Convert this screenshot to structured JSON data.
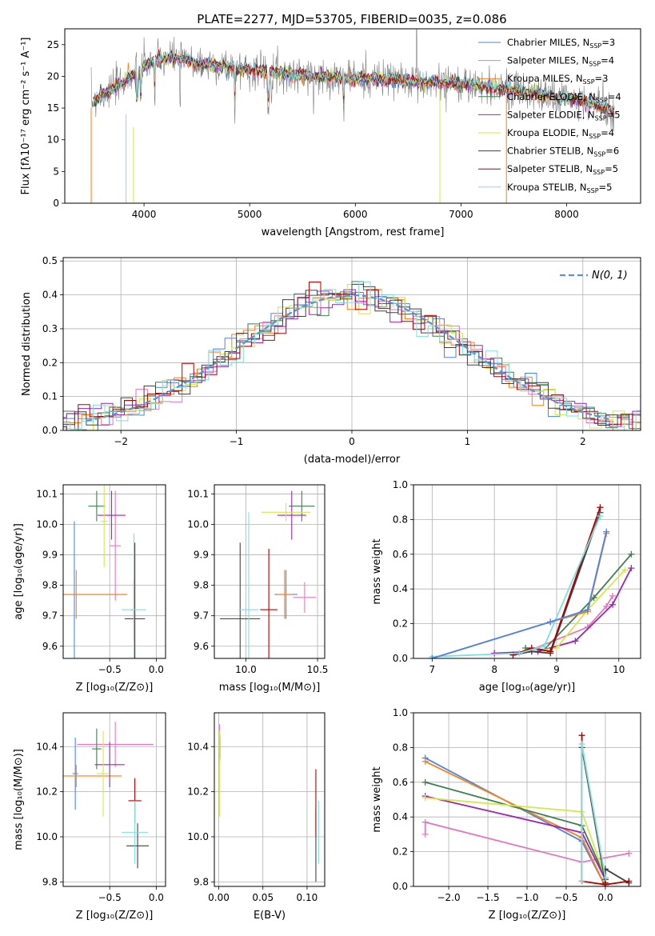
{
  "figure": {
    "title": "PLATE=2277, MJD=53705, FIBERID=0035, z=0.086"
  },
  "colors": {
    "chabrier_miles": "#4a86e8",
    "salpeter_miles": "#e377c2",
    "kroupa_miles": "#ff7f0e",
    "chabrier_elodie": "#3f7f4f",
    "salpeter_elodie": "#9c27b0",
    "kroupa_elodie": "#d4e84a",
    "chabrier_stelib": "#404040",
    "salpeter_stelib": "#b20000",
    "kroupa_stelib": "#7fdfe0",
    "data": "#7f7f7f",
    "normal": "#5b8fd9"
  },
  "chart_data": [
    {
      "id": "spectrum",
      "type": "line",
      "xlabel": "wavelength [Angstrom, rest frame]",
      "ylabel": "Flux [fλ10⁻¹⁷ erg cm⁻² s⁻¹ A⁻¹]",
      "xlim": [
        3250,
        8700
      ],
      "ylim": [
        0,
        27.5
      ],
      "xticks": [
        "4000",
        "5000",
        "6000",
        "7000",
        "8000"
      ],
      "yticks": [
        "0",
        "5",
        "10",
        "15",
        "20",
        "25"
      ],
      "grid": false,
      "legend": "top-right",
      "legend_entries": [
        {
          "base": "Chabrier MILES, N",
          "sub": "SSP",
          "tail": "=3"
        },
        {
          "base": "Salpeter MILES, N",
          "sub": "SSP",
          "tail": "=4"
        },
        {
          "base": "Kroupa MILES, N",
          "sub": "SSP",
          "tail": "=3"
        },
        {
          "base": "Chabrier ELODIE, N",
          "sub": "SSP",
          "tail": "=4"
        },
        {
          "base": "Salpeter ELODIE, N",
          "sub": "SSP",
          "tail": "=5"
        },
        {
          "base": "Kroupa ELODIE, N",
          "sub": "SSP",
          "tail": "=4"
        },
        {
          "base": "Chabrier STELIB, N",
          "sub": "SSP",
          "tail": "=6"
        },
        {
          "base": "Salpeter STELIB, N",
          "sub": "SSP",
          "tail": "=5"
        },
        {
          "base": "Kroupa STELIB, N",
          "sub": "SSP",
          "tail": "=5"
        }
      ],
      "continuum": {
        "x": [
          3500,
          3600,
          3800,
          3950,
          4100,
          4300,
          4500,
          4800,
          5000,
          5300,
          5600,
          6000,
          6300,
          6600,
          7000,
          7400,
          7800,
          8200,
          8450
        ],
        "y": [
          16,
          17,
          19,
          21,
          22.5,
          23,
          22,
          21.5,
          21,
          20.5,
          20,
          19.8,
          19.5,
          19.2,
          18.8,
          18,
          17,
          16,
          14.5
        ]
      }
    },
    {
      "id": "residuals",
      "type": "histogram",
      "xlabel": "(data-model)/error",
      "ylabel": "Normed distribution",
      "xlim": [
        -2.5,
        2.5
      ],
      "ylim": [
        0,
        0.51
      ],
      "xticks": [
        "−2",
        "−1",
        "0",
        "1",
        "2"
      ],
      "yticks": [
        "0.0",
        "0.1",
        "0.2",
        "0.3",
        "0.4",
        "0.5"
      ],
      "grid": true,
      "legend": "top-right",
      "legend_label": "N(0, 1)",
      "bin_width": 0.1
    },
    {
      "id": "age_vs_Z",
      "type": "scatter",
      "xlabel": "Z [log₁₀(Z/Z⊙)]",
      "ylabel": "age  [log₁₀(age/yr)]",
      "xlim": [
        -1.0,
        0.1
      ],
      "ylim": [
        9.56,
        10.13
      ],
      "xticks": [
        "−0.5",
        "0.0"
      ],
      "yticks": [
        "9.6",
        "9.7",
        "9.8",
        "9.9",
        "10.0",
        "10.1"
      ],
      "grid": true,
      "points": [
        {
          "s": "chabrier_miles",
          "x": -0.88,
          "y": 9.77,
          "xerr": 0.56,
          "yerr": 0.24
        },
        {
          "s": "salpeter_miles",
          "x": -0.44,
          "y": 9.93,
          "xerr": 0.06,
          "yerr": 0.18
        },
        {
          "s": "kroupa_miles",
          "x": -0.86,
          "y": 9.77,
          "xerr": 0.55,
          "yerr": 0.08
        },
        {
          "s": "chabrier_elodie",
          "x": -0.64,
          "y": 10.06,
          "xerr": 0.09,
          "yerr": 0.05
        },
        {
          "s": "salpeter_elodie",
          "x": -0.48,
          "y": 10.03,
          "xerr": 0.15,
          "yerr": 0.08
        },
        {
          "s": "kroupa_elodie",
          "x": -0.56,
          "y": 10.01,
          "xerr": 0.04,
          "yerr": 0.15
        },
        {
          "s": "chabrier_stelib",
          "x": -0.23,
          "y": 9.69,
          "xerr": 0.11,
          "yerr": 0.25
        },
        {
          "s": "salpeter_stelib",
          "x": -0.24,
          "y": 9.72,
          "xerr": 0.03,
          "yerr": 0.1
        },
        {
          "s": "kroupa_stelib",
          "x": -0.24,
          "y": 9.72,
          "xerr": 0.13,
          "yerr": 0.25
        }
      ]
    },
    {
      "id": "age_vs_mass",
      "type": "scatter",
      "xlabel": "mass [log₁₀(M/M⊙)]",
      "ylabel": "",
      "xlim": [
        9.78,
        10.55
      ],
      "ylim": [
        9.56,
        10.13
      ],
      "xticks": [
        "10.0",
        "10.5"
      ],
      "yticks": [
        "9.6",
        "9.7",
        "9.8",
        "9.9",
        "10.0",
        "10.1"
      ],
      "grid": true,
      "points": [
        {
          "s": "chabrier_miles",
          "x": 10.28,
          "y": 9.77,
          "xerr": 0.08,
          "yerr": 0.08
        },
        {
          "s": "salpeter_miles",
          "x": 10.41,
          "y": 9.76,
          "xerr": 0.08,
          "yerr": 0.05
        },
        {
          "s": "kroupa_miles",
          "x": 10.27,
          "y": 9.77,
          "xerr": 0.05,
          "yerr": 0.08
        },
        {
          "s": "chabrier_elodie",
          "x": 10.39,
          "y": 10.06,
          "xerr": 0.09,
          "yerr": 0.05
        },
        {
          "s": "salpeter_elodie",
          "x": 10.32,
          "y": 10.03,
          "xerr": 0.1,
          "yerr": 0.08
        },
        {
          "s": "kroupa_elodie",
          "x": 10.28,
          "y": 10.04,
          "xerr": 0.17,
          "yerr": 0.03
        },
        {
          "s": "chabrier_stelib",
          "x": 9.96,
          "y": 9.69,
          "xerr": 0.14,
          "yerr": 0.25
        },
        {
          "s": "salpeter_stelib",
          "x": 10.16,
          "y": 9.72,
          "xerr": 0.06,
          "yerr": 0.2
        },
        {
          "s": "kroupa_stelib",
          "x": 10.02,
          "y": 9.72,
          "xerr": 0.07,
          "yerr": 0.32
        }
      ]
    },
    {
      "id": "mass_vs_Z",
      "type": "scatter",
      "xlabel": "Z [log₁₀(Z/Z⊙)]",
      "ylabel": "mass [log₁₀(M/M⊙)]",
      "xlim": [
        -1.0,
        0.1
      ],
      "ylim": [
        9.78,
        10.55
      ],
      "xticks": [
        "−0.5",
        "0.0"
      ],
      "yticks": [
        "9.8",
        "10.0",
        "10.2",
        "10.4"
      ],
      "grid": true,
      "points": [
        {
          "s": "chabrier_miles",
          "x": -0.87,
          "y": 10.28,
          "xerr": 0.03,
          "yerr": 0.16
        },
        {
          "s": "salpeter_miles",
          "x": -0.44,
          "y": 10.41,
          "xerr": 0.41,
          "yerr": 0.1
        },
        {
          "s": "kroupa_miles",
          "x": -0.86,
          "y": 10.27,
          "xerr": 0.49,
          "yerr": 0.05
        },
        {
          "s": "chabrier_elodie",
          "x": -0.64,
          "y": 10.39,
          "xerr": 0.05,
          "yerr": 0.09
        },
        {
          "s": "salpeter_elodie",
          "x": -0.5,
          "y": 10.32,
          "xerr": 0.16,
          "yerr": 0.1
        },
        {
          "s": "kroupa_elodie",
          "x": -0.57,
          "y": 10.28,
          "xerr": 0.07,
          "yerr": 0.19
        },
        {
          "s": "chabrier_stelib",
          "x": -0.2,
          "y": 9.96,
          "xerr": 0.12,
          "yerr": 0.1
        },
        {
          "s": "salpeter_stelib",
          "x": -0.23,
          "y": 10.16,
          "xerr": 0.07,
          "yerr": 0.1
        },
        {
          "s": "kroupa_stelib",
          "x": -0.23,
          "y": 10.02,
          "xerr": 0.14,
          "yerr": 0.14
        }
      ]
    },
    {
      "id": "mass_vs_ebv",
      "type": "scatter",
      "xlabel": "E(B-V)",
      "ylabel": "",
      "xlim": [
        -0.005,
        0.12
      ],
      "ylim": [
        9.78,
        10.55
      ],
      "xticks": [
        "0.00",
        "0.05",
        "0.10"
      ],
      "yticks": [
        "9.8",
        "10.0",
        "10.2",
        "10.4"
      ],
      "grid": true,
      "points": [
        {
          "s": "chabrier_miles",
          "x": 0.001,
          "y": 10.39,
          "xerr": 0,
          "yerr": 0.04
        },
        {
          "s": "salpeter_miles",
          "x": 0.001,
          "y": 10.41,
          "xerr": 0,
          "yerr": 0.09
        },
        {
          "s": "kroupa_miles",
          "x": 0.001,
          "y": 10.42,
          "xerr": 0,
          "yerr": 0.04
        },
        {
          "s": "chabrier_elodie",
          "x": 0.001,
          "y": 10.39,
          "xerr": 0,
          "yerr": 0.05
        },
        {
          "s": "salpeter_elodie",
          "x": 0.001,
          "y": 10.4,
          "xerr": 0,
          "yerr": 0.05
        },
        {
          "s": "kroupa_elodie",
          "x": 0.001,
          "y": 10.28,
          "xerr": 0,
          "yerr": 0.19
        },
        {
          "s": "chabrier_stelib",
          "x": 0.11,
          "y": 9.96,
          "xerr": 0,
          "yerr": 0.16
        },
        {
          "s": "salpeter_stelib",
          "x": 0.11,
          "y": 10.15,
          "xerr": 0,
          "yerr": 0.15
        },
        {
          "s": "kroupa_stelib",
          "x": 0.113,
          "y": 10.02,
          "xerr": 0,
          "yerr": 0.14
        }
      ]
    },
    {
      "id": "massweight_vs_age",
      "type": "line",
      "xlabel": "age  [log₁₀(age/yr)]",
      "ylabel": "mass weight",
      "xlim": [
        6.7,
        10.35
      ],
      "ylim": [
        0,
        1.0
      ],
      "xticks": [
        "7",
        "8",
        "9",
        "10"
      ],
      "yticks": [
        "0.0",
        "0.2",
        "0.4",
        "0.6",
        "0.8",
        "1.0"
      ],
      "grid": true,
      "series": [
        {
          "s": "salpeter_miles",
          "x": [
            8.6,
            9.5,
            9.8,
            9.9
          ],
          "y": [
            0.05,
            0.18,
            0.3,
            0.36
          ]
        },
        {
          "s": "chabrier_elodie",
          "x": [
            8.5,
            8.8,
            9.6,
            10.2
          ],
          "y": [
            0.06,
            0.05,
            0.35,
            0.6
          ]
        },
        {
          "s": "salpeter_elodie",
          "x": [
            8.0,
            8.7,
            9.3,
            9.9,
            10.2
          ],
          "y": [
            0.03,
            0.04,
            0.1,
            0.31,
            0.52
          ]
        },
        {
          "s": "kroupa_elodie",
          "x": [
            8.8,
            9.0,
            9.5,
            10.1
          ],
          "y": [
            0.05,
            0.06,
            0.28,
            0.51
          ]
        },
        {
          "s": "chabrier_stelib",
          "x": [
            8.3,
            8.6,
            8.9,
            9.7
          ],
          "y": [
            0.02,
            0.04,
            0.03,
            0.84
          ]
        },
        {
          "s": "salpeter_stelib",
          "x": [
            8.3,
            8.6,
            8.9,
            9.7
          ],
          "y": [
            0.02,
            0.06,
            0.04,
            0.87
          ]
        },
        {
          "s": "kroupa_stelib",
          "x": [
            7.0,
            8.4,
            8.8,
            9.7
          ],
          "y": [
            0.01,
            0.03,
            0.07,
            0.82
          ]
        },
        {
          "s": "kroupa_miles",
          "x": [
            7.0,
            8.9,
            9.5,
            9.8
          ],
          "y": [
            0.0,
            0.21,
            0.27,
            0.72
          ]
        },
        {
          "s": "chabrier_miles",
          "x": [
            7.0,
            8.9,
            9.5,
            9.8
          ],
          "y": [
            0.0,
            0.21,
            0.28,
            0.73
          ]
        }
      ]
    },
    {
      "id": "massweight_vs_Z",
      "type": "line",
      "xlabel": "Z [log₁₀(Z/Z⊙)]",
      "ylabel": "mass weight",
      "xlim": [
        -2.45,
        0.45
      ],
      "ylim": [
        0,
        1.0
      ],
      "xticks": [
        "−2.0",
        "−1.5",
        "−1.0",
        "−0.5",
        "0.0"
      ],
      "yticks": [
        "0.0",
        "0.2",
        "0.4",
        "0.6",
        "0.8",
        "1.0"
      ],
      "grid": true,
      "series": [
        {
          "s": "chabrier_miles",
          "x": [
            -2.3,
            -0.3,
            0.0
          ],
          "y": [
            0.74,
            0.26,
            0.0
          ]
        },
        {
          "s": "kroupa_miles",
          "x": [
            -2.3,
            -0.3,
            0.0
          ],
          "y": [
            0.72,
            0.28,
            0.0
          ]
        },
        {
          "s": "salpeter_miles",
          "x": [
            -2.3,
            -2.3,
            -0.3,
            0.3
          ],
          "y": [
            0.3,
            0.37,
            0.14,
            0.19
          ]
        },
        {
          "s": "chabrier_elodie",
          "x": [
            -2.3,
            -0.3,
            0.0
          ],
          "y": [
            0.6,
            0.35,
            0.05
          ]
        },
        {
          "s": "salpeter_elodie",
          "x": [
            -2.3,
            -0.3,
            0.0
          ],
          "y": [
            0.52,
            0.31,
            0.04
          ]
        },
        {
          "s": "kroupa_elodie",
          "x": [
            -2.3,
            -0.3,
            0.0
          ],
          "y": [
            0.51,
            0.43,
            0.05
          ]
        },
        {
          "s": "chabrier_stelib",
          "x": [
            -0.3,
            -0.3,
            0.0,
            0.0,
            0.3
          ],
          "y": [
            0.03,
            0.8,
            0.02,
            0.1,
            0.02
          ]
        },
        {
          "s": "salpeter_stelib",
          "x": [
            -0.3,
            -0.3,
            0.0,
            0.3
          ],
          "y": [
            0.87,
            0.03,
            0.01,
            0.03
          ]
        },
        {
          "s": "kroupa_stelib",
          "x": [
            -0.3,
            -0.3,
            0.0
          ],
          "y": [
            0.03,
            0.82,
            0.05
          ]
        }
      ]
    }
  ]
}
